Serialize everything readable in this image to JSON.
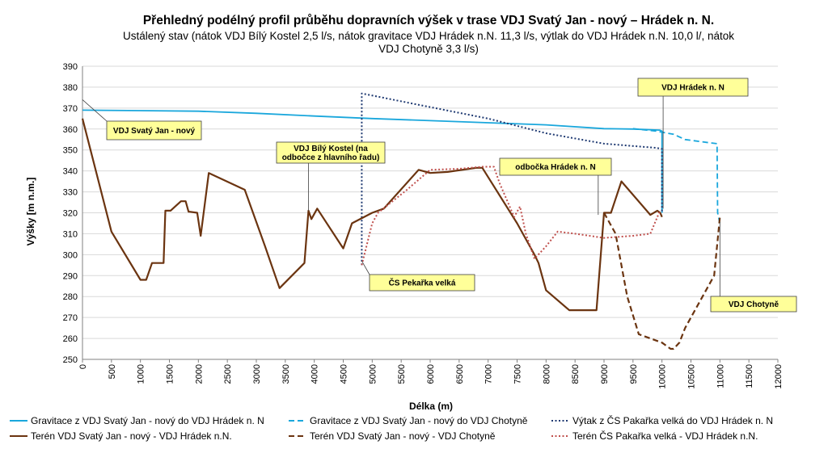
{
  "chart_data": {
    "type": "line",
    "title": "Přehledný podélný profil průběhu dopravních výšek v trase VDJ Svatý Jan - nový – Hrádek n. N.",
    "subtitle_lines": [
      "Ustálený stav (nátok VDJ Bílý Kostel 2,5 l/s, nátok gravitace VDJ Hrádek n.N. 11,3 l/s, výtlak do VDJ Hrádek n.N. 10,0 l/, nátok",
      "VDJ Chotyně 3,3 l/s)"
    ],
    "xlabel": "Délka (m)",
    "ylabel": "Výšky [m n.m.]",
    "xlim": [
      0,
      12000
    ],
    "ylim": [
      250,
      390
    ],
    "x_ticks": [
      "0",
      "500",
      "1000",
      "1500",
      "2000",
      "2500",
      "3000",
      "3500",
      "4000",
      "4500",
      "5000",
      "5500",
      "6000",
      "6500",
      "7000",
      "7500",
      "8000",
      "8500",
      "9000",
      "9500",
      "10000",
      "10500",
      "11000",
      "11500",
      "12000"
    ],
    "y_ticks": [
      "250",
      "260",
      "270",
      "280",
      "290",
      "300",
      "310",
      "320",
      "330",
      "340",
      "350",
      "360",
      "370",
      "380",
      "390"
    ],
    "grid": "horizontal",
    "legend_position": "bottom",
    "series": [
      {
        "name": "Gravitace z VDJ Svatý Jan - nový do VDJ Hrádek n. N",
        "color": "#1aa7dc",
        "style": "solid",
        "x": [
          0,
          1000,
          2000,
          3000,
          4000,
          5000,
          6000,
          7000,
          8000,
          9000,
          9500,
          9960,
          10000,
          10000
        ],
        "y": [
          369,
          368.8,
          368.5,
          367.5,
          366.2,
          365,
          364,
          363,
          362,
          360.2,
          360,
          359.5,
          359,
          320
        ]
      },
      {
        "name": "Gravitace z VDJ Svatý Jan - nový do VDJ Chotyně",
        "color": "#1aa7dc",
        "style": "dashed",
        "x": [
          9500,
          9900,
          10200,
          10400,
          10800,
          10950,
          10960,
          11000
        ],
        "y": [
          360.2,
          359,
          357.5,
          355,
          353.5,
          353,
          320,
          315
        ]
      },
      {
        "name": "Výtak z ČS Pakařka velká do VDJ Hrádek n. N",
        "color": "#1f3a72",
        "style": "dotted",
        "x": [
          4820,
          4820,
          6000,
          7000,
          8000,
          9000,
          9900,
          10000,
          10000
        ],
        "y": [
          295,
          377,
          370.5,
          365,
          358,
          353,
          351,
          350.5,
          320
        ]
      },
      {
        "name": "Terén VDJ Svatý Jan - nový - VDJ Hrádek n.N.",
        "color": "#6b3410",
        "style": "solid",
        "x": [
          0,
          500,
          1000,
          1100,
          1200,
          1400,
          1430,
          1520,
          1700,
          1780,
          1830,
          1850,
          1980,
          2040,
          2180,
          2800,
          3150,
          3400,
          3830,
          3900,
          3950,
          4050,
          4500,
          4650,
          5000,
          5200,
          5800,
          6000,
          6300,
          6800,
          6900,
          7500,
          7800,
          7870,
          8000,
          8400,
          8600,
          8870,
          9000,
          9060,
          9120,
          9300,
          9800,
          9920,
          9970,
          10000
        ],
        "y": [
          365,
          311,
          288,
          288,
          296,
          296,
          321,
          321,
          325.5,
          325.5,
          320.5,
          320.5,
          320,
          309,
          339,
          331,
          304,
          284,
          296,
          321,
          317,
          322,
          303,
          315,
          320,
          322,
          340.5,
          339,
          339.5,
          341.5,
          341.5,
          315,
          300,
          296,
          283,
          273.5,
          273.5,
          273.5,
          320,
          320,
          320,
          335,
          319,
          321,
          320,
          318
        ]
      },
      {
        "name": "Terén VDJ Svatý Jan - nový - VDJ Chotyně",
        "color": "#6b3410",
        "style": "dashed",
        "x": [
          9000,
          9200,
          9400,
          9600,
          9800,
          10000,
          10150,
          10200,
          10300,
          10400,
          10900,
          11000
        ],
        "y": [
          320,
          310,
          280,
          262,
          260,
          258,
          255,
          255,
          258,
          265,
          290,
          318
        ]
      },
      {
        "name": "Terén ČS Pakařka velká - VDJ Hrádek n.N.",
        "color": "#c0504d",
        "style": "dotted",
        "x": [
          4820,
          5000,
          5100,
          5600,
          6000,
          6500,
          6900,
          7100,
          7200,
          7450,
          7550,
          7650,
          7800,
          8000,
          8200,
          8500,
          9000,
          9500,
          9800,
          9950,
          10000
        ],
        "y": [
          295,
          315,
          320,
          331,
          340.5,
          341,
          342,
          342,
          334,
          318,
          323,
          310,
          298,
          304,
          311,
          310,
          308,
          309,
          310,
          320,
          320
        ]
      }
    ],
    "annotations": [
      {
        "text_lines": [
          "VDJ Svatý Jan - nový"
        ],
        "point": [
          0,
          374
        ]
      },
      {
        "text_lines": [
          "VDJ Bílý Kostel (na",
          "odbočce z hlavního řadu)"
        ],
        "point": [
          3900,
          321
        ]
      },
      {
        "text_lines": [
          "ČS Pekařka velká"
        ],
        "point": [
          4820,
          297
        ]
      },
      {
        "text_lines": [
          "odbočka Hrádek n. N"
        ],
        "point": [
          8900,
          319
        ]
      },
      {
        "text_lines": [
          "VDJ Hrádek n. N"
        ],
        "point": [
          10020,
          322
        ]
      },
      {
        "text_lines": [
          "VDJ Chotyně"
        ],
        "point": [
          11000,
          315
        ]
      }
    ],
    "colors": {
      "annotation_fill": "#ffff99",
      "annotation_border": "#404040",
      "grid": "#d9d9d9",
      "axis": "#808080"
    }
  }
}
